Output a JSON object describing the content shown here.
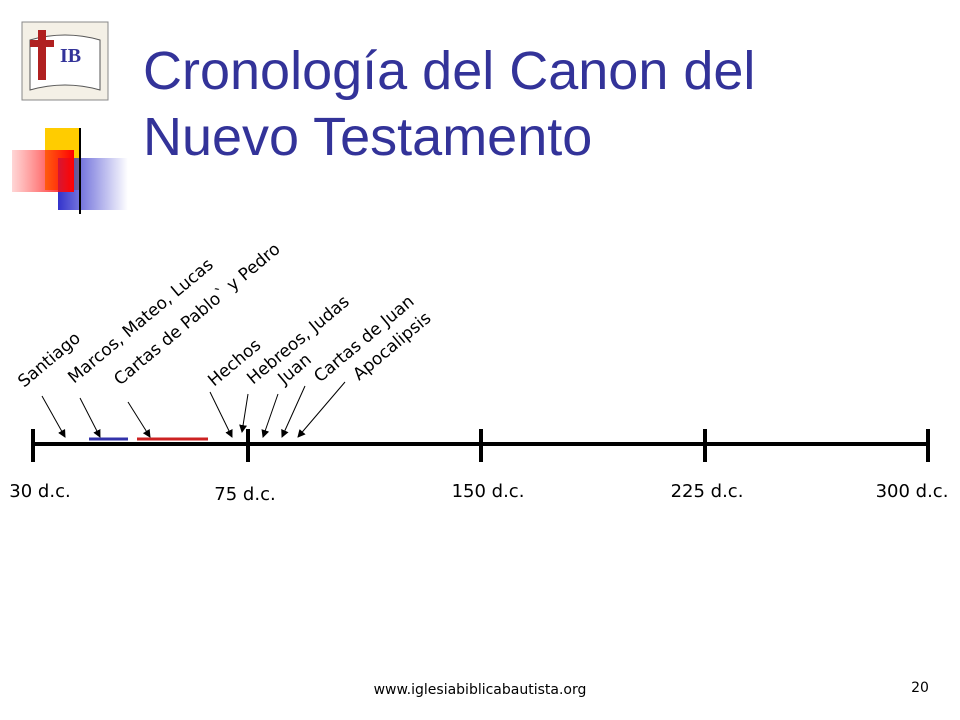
{
  "header": {
    "title": "Cronología del Canon del Nuevo Testamento"
  },
  "timeline": {
    "ticks": [
      "30 d.c.",
      "75 d.c.",
      "150 d.c.",
      "225 d.c.",
      "300 d.c."
    ],
    "events": [
      "Santiago",
      "Marcos, Mateo, Lucas",
      "Cartas de Pablo` y Pedro",
      "Hechos",
      "Hebreos, Judas",
      "Juan",
      "Cartas de Juan",
      "Apocalipsis"
    ]
  },
  "footer": {
    "url": "www.iglesiabiblicabautista.org",
    "page": "20"
  }
}
